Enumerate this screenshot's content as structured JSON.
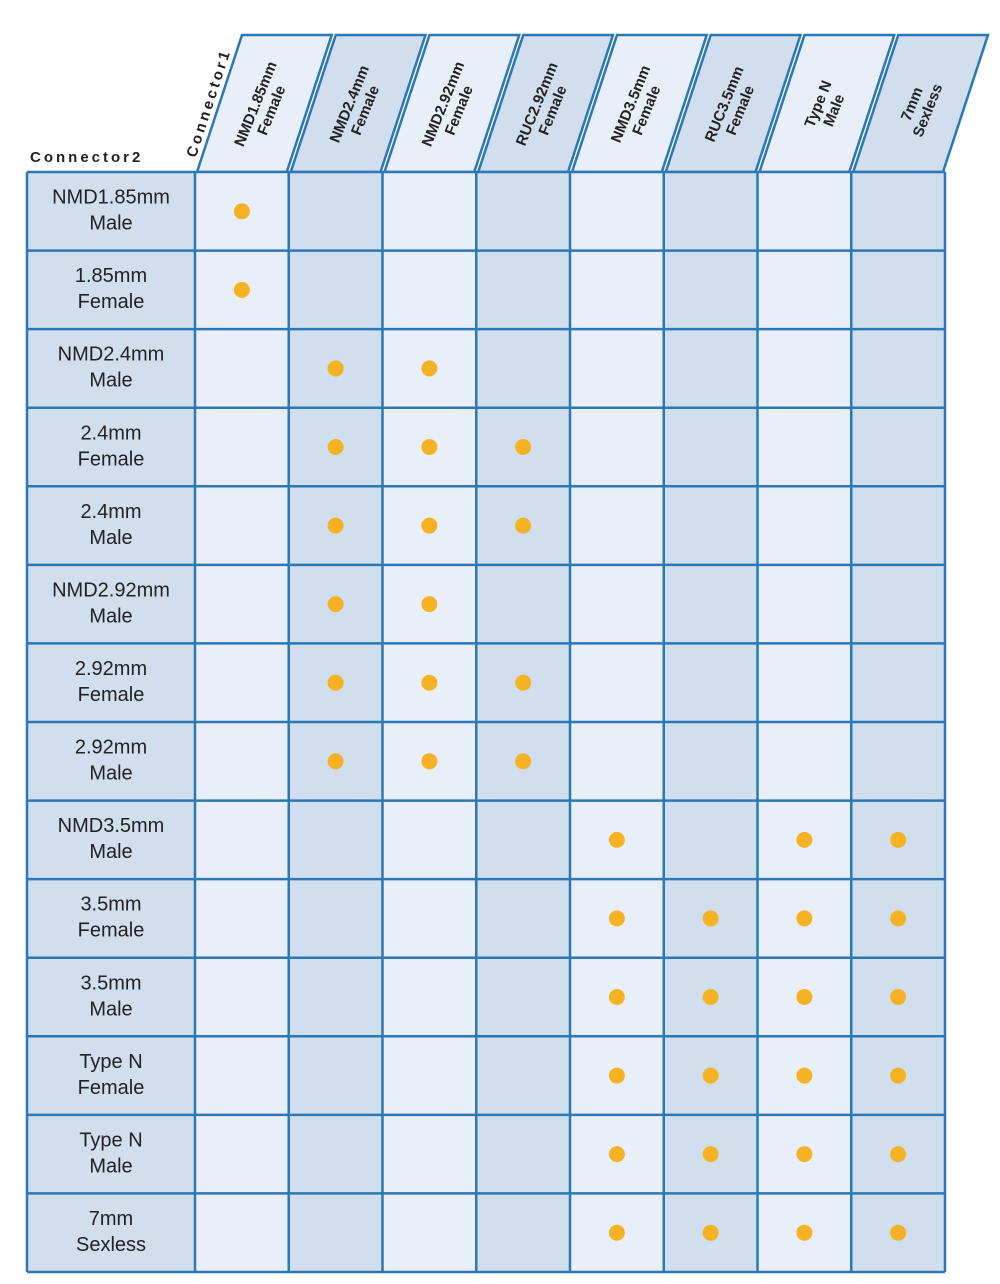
{
  "table": {
    "corner_col_label": "Connector1",
    "corner_row_label": "Connector2",
    "columns": [
      [
        "NMD1.85mm",
        "Female"
      ],
      [
        "NMD2.4mm",
        "Female"
      ],
      [
        "NMD2.92mm",
        "Female"
      ],
      [
        "RUC2.92mm",
        "Female"
      ],
      [
        "NMD3.5mm",
        "Female"
      ],
      [
        "RUC3.5mm",
        "Female"
      ],
      [
        "Type N",
        "Male"
      ],
      [
        "7mm",
        "Sexless"
      ]
    ],
    "rows": [
      [
        "NMD1.85mm",
        "Male"
      ],
      [
        "1.85mm",
        "Female"
      ],
      [
        "NMD2.4mm",
        "Male"
      ],
      [
        "2.4mm",
        "Female"
      ],
      [
        "2.4mm",
        "Male"
      ],
      [
        "NMD2.92mm",
        "Male"
      ],
      [
        "2.92mm",
        "Female"
      ],
      [
        "2.92mm",
        "Male"
      ],
      [
        "NMD3.5mm",
        "Male"
      ],
      [
        "3.5mm",
        "Female"
      ],
      [
        "3.5mm",
        "Male"
      ],
      [
        "Type N",
        "Female"
      ],
      [
        "Type N",
        "Male"
      ],
      [
        "7mm",
        "Sexless"
      ]
    ],
    "compatible": [
      [
        true,
        false,
        false,
        false,
        false,
        false,
        false,
        false
      ],
      [
        true,
        false,
        false,
        false,
        false,
        false,
        false,
        false
      ],
      [
        false,
        true,
        true,
        false,
        false,
        false,
        false,
        false
      ],
      [
        false,
        true,
        true,
        true,
        false,
        false,
        false,
        false
      ],
      [
        false,
        true,
        true,
        true,
        false,
        false,
        false,
        false
      ],
      [
        false,
        true,
        true,
        false,
        false,
        false,
        false,
        false
      ],
      [
        false,
        true,
        true,
        true,
        false,
        false,
        false,
        false
      ],
      [
        false,
        true,
        true,
        true,
        false,
        false,
        false,
        false
      ],
      [
        false,
        false,
        false,
        false,
        true,
        false,
        true,
        true
      ],
      [
        false,
        false,
        false,
        false,
        true,
        true,
        true,
        true
      ],
      [
        false,
        false,
        false,
        false,
        true,
        true,
        true,
        true
      ],
      [
        false,
        false,
        false,
        false,
        true,
        true,
        true,
        true
      ],
      [
        false,
        false,
        false,
        false,
        true,
        true,
        true,
        true
      ],
      [
        false,
        false,
        false,
        false,
        true,
        true,
        true,
        true
      ]
    ],
    "dot_color": "#f5b324",
    "light_color": "#e9eff8",
    "dark_color": "#d0deee",
    "border_color": "#2b78b4"
  }
}
